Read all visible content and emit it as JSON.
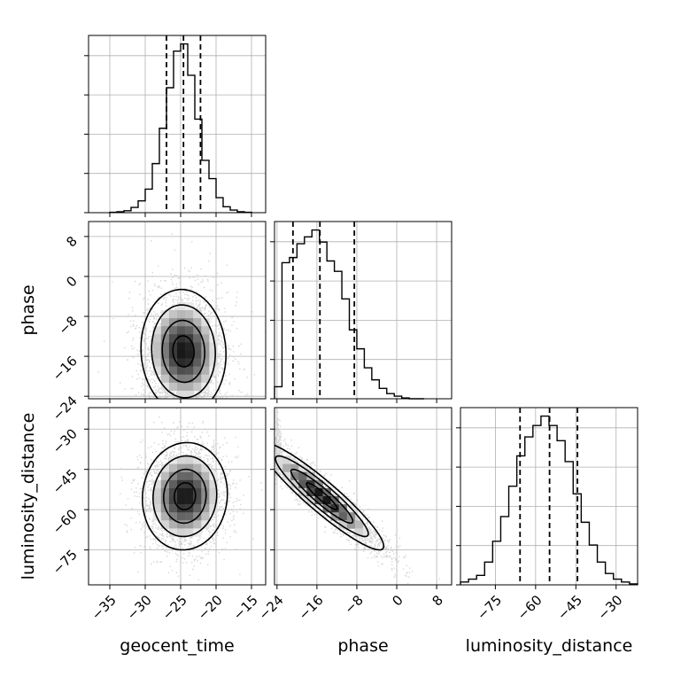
{
  "chart_data": {
    "type": "corner",
    "parameters": [
      "geocent_time",
      "phase",
      "luminosity_distance"
    ],
    "grid": true,
    "panels": [
      {
        "id": "hist-geocent_time",
        "type": "histogram",
        "row": 0,
        "col": 0,
        "xlim": [
          -38,
          -13
        ],
        "bin_edges": [
          -35,
          -34,
          -33,
          -32,
          -31,
          -30,
          -29,
          -28,
          -27,
          -26,
          -25,
          -24,
          -23,
          -22,
          -21,
          -20,
          -19,
          -18,
          -17,
          -16,
          -15
        ],
        "counts": [
          1,
          3,
          6,
          16,
          36,
          72,
          150,
          258,
          382,
          494,
          516,
          420,
          286,
          160,
          104,
          46,
          18,
          8,
          3,
          1
        ],
        "quantiles": [
          -27.0,
          -24.6,
          -22.2
        ]
      },
      {
        "id": "hist-phase",
        "type": "histogram",
        "row": 1,
        "col": 1,
        "xlim": [
          -24.5,
          11
        ],
        "bin_edges": [
          -24.5,
          -23.0,
          -21.5,
          -20.0,
          -18.5,
          -17.0,
          -15.5,
          -14.0,
          -12.5,
          -11.0,
          -9.5,
          -8.0,
          -6.5,
          -5.0,
          -3.5,
          -2.0,
          -0.5,
          1.0,
          2.5,
          4.0,
          5.5
        ],
        "counts": [
          14,
          158,
          164,
          180,
          188,
          196,
          182,
          160,
          148,
          116,
          80,
          58,
          36,
          22,
          12,
          6,
          3,
          1,
          0,
          0
        ],
        "quantiles": [
          -20.8,
          -15.4,
          -8.5
        ]
      },
      {
        "id": "hist-luminosity_distance",
        "type": "histogram",
        "row": 2,
        "col": 2,
        "xlim": [
          -88,
          -22
        ],
        "bin_edges": [
          -88,
          -85,
          -82,
          -79,
          -76,
          -73,
          -70,
          -67,
          -64,
          -61,
          -58,
          -55,
          -52,
          -49,
          -46,
          -43,
          -40,
          -37,
          -34,
          -31,
          -28,
          -25,
          -22
        ],
        "counts": [
          3,
          6,
          10,
          24,
          46,
          72,
          104,
          136,
          156,
          168,
          178,
          168,
          152,
          130,
          96,
          66,
          42,
          24,
          12,
          6,
          3,
          1
        ],
        "quantiles": [
          -65.8,
          -54.8,
          -44.4
        ]
      },
      {
        "id": "scatter-phase-vs-geocent_time",
        "type": "density2d",
        "row": 1,
        "col": 0,
        "x": "geocent_time",
        "y": "phase",
        "xlim": [
          -38,
          -13
        ],
        "ylim": [
          -24.5,
          11
        ],
        "center": [
          -24.6,
          -15.0
        ],
        "sigma": [
          3.0,
          6.2
        ],
        "correlation": -0.05,
        "y_clip": [
          -24.5,
          11
        ]
      },
      {
        "id": "scatter-luminosity_distance-vs-geocent_time",
        "type": "density2d",
        "row": 2,
        "col": 0,
        "x": "geocent_time",
        "y": "luminosity_distance",
        "xlim": [
          -38,
          -13
        ],
        "ylim": [
          -88,
          -22
        ],
        "center": [
          -24.4,
          -55.0
        ],
        "sigma": [
          3.0,
          10.0
        ],
        "correlation": 0.05
      },
      {
        "id": "scatter-luminosity_distance-vs-phase",
        "type": "density2d",
        "row": 2,
        "col": 1,
        "x": "phase",
        "y": "luminosity_distance",
        "xlim": [
          -24.5,
          11
        ],
        "ylim": [
          -88,
          -22
        ],
        "center": [
          -15.0,
          -55.0
        ],
        "sigma": [
          6.2,
          10.0
        ],
        "correlation": -0.93,
        "x_clip": [
          -24.5,
          11
        ]
      }
    ],
    "axes": {
      "geocent_time": {
        "label": "geocent_time",
        "ticks": [
          -35,
          -30,
          -25,
          -20,
          -15
        ],
        "tick_labels": [
          "−35",
          "−30",
          "−25",
          "−20",
          "−15"
        ]
      },
      "phase": {
        "label": "phase",
        "ticks": [
          -24,
          -16,
          -8,
          0,
          8
        ],
        "tick_labels": [
          "−24",
          "−16",
          "−8",
          "0",
          "8"
        ]
      },
      "luminosity_distance": {
        "label": "luminosity_distance",
        "ticks": [
          -75,
          -60,
          -45,
          -30
        ],
        "tick_labels": [
          "−75",
          "−60",
          "−45",
          "−30"
        ]
      }
    },
    "contour_levels_sigma": [
      0.5,
      1.0,
      1.5,
      2.0
    ]
  },
  "colors": {
    "marks": "#000000",
    "grid": "#b0b0b0",
    "background": "#ffffff",
    "scatter_points": "#c8c8c8"
  }
}
